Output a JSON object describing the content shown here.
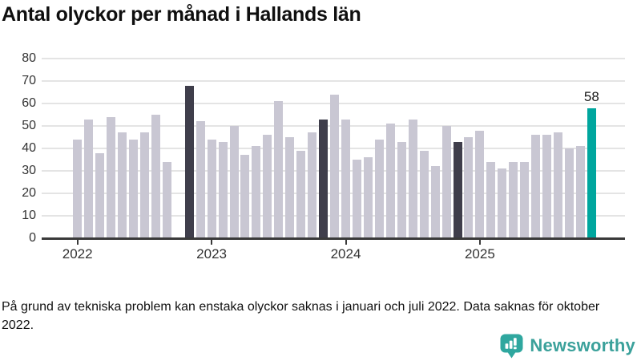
{
  "title": "Antal olyckor per månad i Hallands län",
  "footnote": "På grund av tekniska problem kan enstaka olyckor saknas i januari och juli 2022. Data saknas för oktober 2022.",
  "branding": {
    "name": "Newsworthy",
    "icon": "bar-chart-speech-bubble",
    "color": "#3BA19B",
    "icon_color": "#2FA79F"
  },
  "chart_data": {
    "type": "bar",
    "title": "Antal olyckor per månad i Hallands län",
    "ylabel": "",
    "xlabel": "",
    "ylim": [
      0,
      80
    ],
    "y_ticks": [
      0,
      10,
      20,
      30,
      40,
      50,
      60,
      70,
      80
    ],
    "grid": "horizontal",
    "legend": "none",
    "series": [
      {
        "year": "2022",
        "values": [
          44,
          53,
          38,
          54,
          47,
          44,
          47,
          55,
          34,
          null,
          68,
          52
        ]
      },
      {
        "year": "2023",
        "values": [
          44,
          43,
          50,
          37,
          41,
          46,
          61,
          45,
          39,
          47,
          53,
          64
        ]
      },
      {
        "year": "2024",
        "values": [
          53,
          35,
          36,
          44,
          51,
          43,
          53,
          39,
          32,
          50,
          43,
          45
        ]
      },
      {
        "year": "2025",
        "values": [
          48,
          34,
          31,
          34,
          34,
          46,
          46,
          47,
          40,
          41,
          58
        ]
      }
    ],
    "dark_months": [
      "2022-11",
      "2023-11",
      "2024-11"
    ],
    "accent_month": "2025-11",
    "missing_month": "2022-10",
    "annotation": {
      "month": "2025-11",
      "label": "58"
    },
    "colors": {
      "bar_default": "#C9C7D3",
      "bar_dark": "#3F3E4B",
      "bar_accent": "#00A69E",
      "gridline": "#E4E4E4",
      "axis": "#3A3A3A",
      "tick_label": "#333333"
    }
  }
}
